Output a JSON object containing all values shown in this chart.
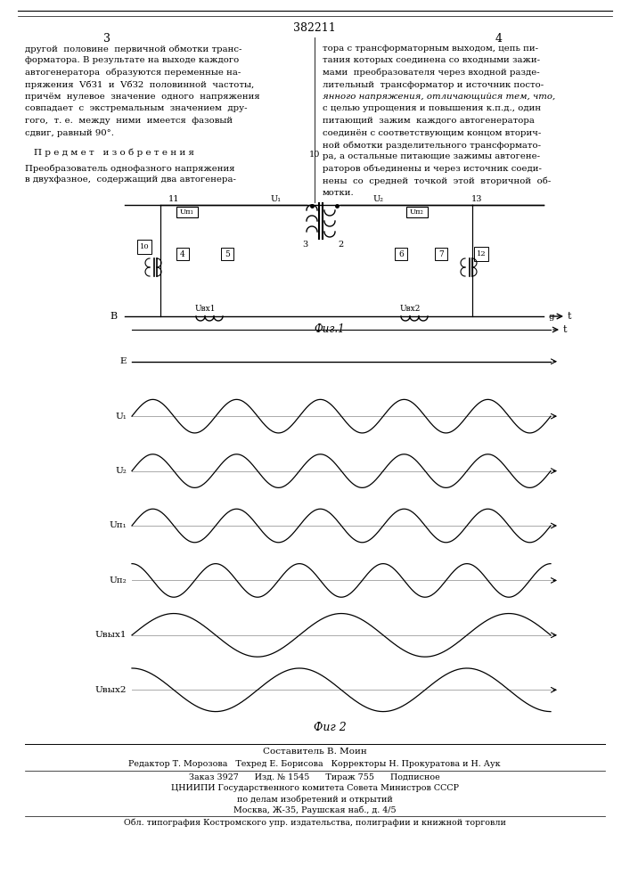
{
  "page_number": "382211",
  "page_left": "3",
  "page_right": "4",
  "left_text": [
    "другой  половине  первичной обмотки транс-",
    "форматора. В результате на выходе каждого",
    "автогенератора  образуются переменные на-",
    "пряжения  VбЗ1  и  VбЗ2  половинной  частоты,",
    "причём  нулевое  значение  одного  напряжения",
    "совпадает  с  экстремальным  значением  дру-",
    "гого,  т. е.  между  ними  имеется  фазовый",
    "сдвиг, равный 90°."
  ],
  "section_title": "П р е д м е т   и з о б р е т е н и я",
  "invention_text": [
    "Преобразователь однофазного напряжения",
    "в двухфазное,  содержащий два автогенера-"
  ],
  "right_text": [
    "тора с трансформаторным выходом, цепь пи-",
    "тания которых соединена со входными зажи-",
    "мами  преобразователя через входной разде-",
    "лительный  трансформатор и источник посто-",
    "янного напряжения, отличающийся тем, что,",
    "с целью упрощения и повышения к.п.д., один",
    "питающий  зажим  каждого автогенератора",
    "соединён с соответствующим концом вторич-",
    "ной обмотки разделительного трансформато-",
    "ра, а остальные питающие зажимы автогене-",
    "раторов объединены и через источник соеди-",
    "нены  со  средней  точкой  этой  вторичной  об-",
    "мотки."
  ],
  "fig1_label": "Фиг.1",
  "fig2_label": "Фиг 2",
  "compositor": "Составитель В. Моин",
  "editor_line": "Редактор Т. Морозова   Техред Е. Борисова   Корректоры Н. Прокуратова и Н. Аук",
  "order_line": "Заказ 3927      Изд. № 1545      Тираж 755      Подписное",
  "institute_line1": "ЦНИИПИ Государственного комитета Совета Министров СССР",
  "institute_line2": "по делам изобретений и открытий",
  "institute_line3": "Москва, Ж-35, Раушская наб., д. 4/5",
  "print_line": "Обл. типография Костромского упр. издательства, полиграфии и книжной торговли",
  "bg_color": "#ffffff",
  "text_color": "#000000"
}
